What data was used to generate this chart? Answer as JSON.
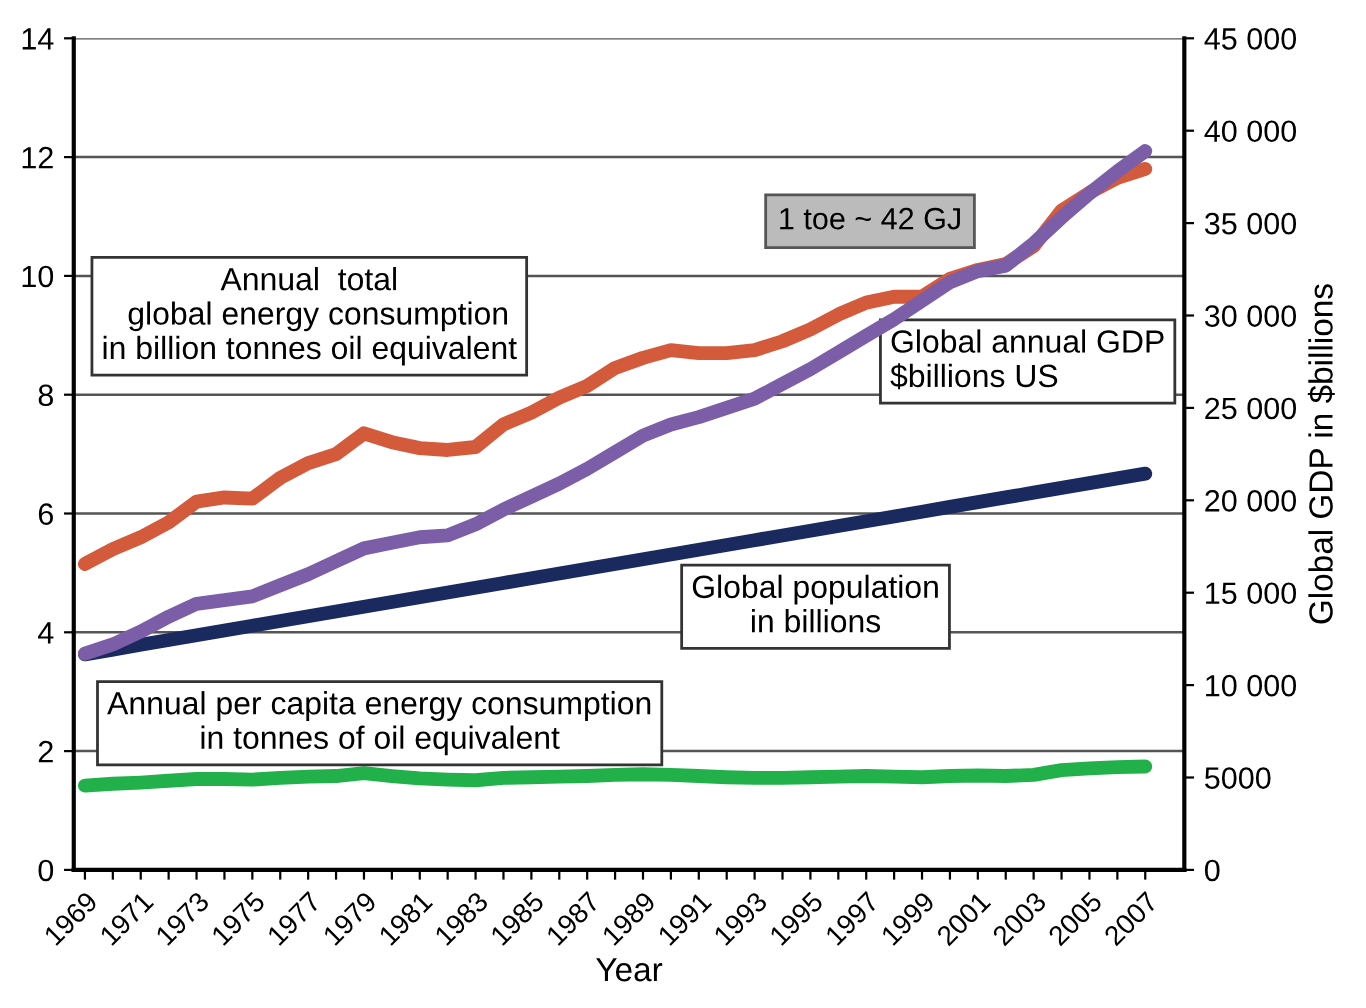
{
  "chart_data": {
    "type": "line",
    "xlabel": "Year",
    "y2label": "Global GDP in $billions",
    "x": [
      1969,
      1970,
      1971,
      1972,
      1973,
      1974,
      1975,
      1976,
      1977,
      1978,
      1979,
      1980,
      1981,
      1982,
      1983,
      1984,
      1985,
      1986,
      1987,
      1988,
      1989,
      1990,
      1991,
      1992,
      1993,
      1994,
      1995,
      1996,
      1997,
      1998,
      1999,
      2000,
      2001,
      2002,
      2003,
      2004,
      2005,
      2006,
      2007
    ],
    "xlim": [
      1968.6,
      2008.4
    ],
    "xticks": [
      1969,
      {
        "value": 1970,
        "label": null
      },
      1971,
      {
        "value": 1972,
        "label": null
      },
      1973,
      {
        "value": 1974,
        "label": null
      },
      1975,
      {
        "value": 1976,
        "label": null
      },
      1977,
      {
        "value": 1978,
        "label": null
      },
      1979,
      {
        "value": 1980,
        "label": null
      },
      1981,
      {
        "value": 1982,
        "label": null
      },
      1983,
      {
        "value": 1984,
        "label": null
      },
      1985,
      {
        "value": 1986,
        "label": null
      },
      1987,
      {
        "value": 1988,
        "label": null
      },
      1989,
      {
        "value": 1990,
        "label": null
      },
      1991,
      {
        "value": 1992,
        "label": null
      },
      1993,
      {
        "value": 1994,
        "label": null
      },
      1995,
      {
        "value": 1996,
        "label": null
      },
      1997,
      {
        "value": 1998,
        "label": null
      },
      1999,
      {
        "value": 2000,
        "label": null
      },
      2001,
      {
        "value": 2002,
        "label": null
      },
      2003,
      {
        "value": 2004,
        "label": null
      },
      2005,
      {
        "value": 2006,
        "label": null
      },
      2007
    ],
    "ylim": [
      0,
      14
    ],
    "yticks": [
      0,
      2,
      4,
      6,
      8,
      10,
      12,
      14
    ],
    "y2lim": [
      0,
      45000
    ],
    "y2ticks": [
      0,
      5000,
      {
        "value": 10000,
        "label": "10 000"
      },
      {
        "value": 15000,
        "label": "15 000"
      },
      {
        "value": 20000,
        "label": "20 000"
      },
      {
        "value": 25000,
        "label": "25 000"
      },
      {
        "value": 30000,
        "label": "30 000"
      },
      {
        "value": 35000,
        "label": "35 000"
      },
      {
        "value": 40000,
        "label": "40 000"
      },
      {
        "value": 45000,
        "label": "45 000"
      }
    ],
    "grid": "y",
    "legend": false,
    "marker": "none",
    "line_style": "solid",
    "annotations": [
      "1 toe ~ 42 GJ"
    ],
    "series": [
      {
        "name": "Annual  total\n  global energy consumption\nin billion tonnes oil equivalent",
        "color": "#d45a3c",
        "values": [
          5.15,
          5.4,
          5.6,
          5.85,
          6.2,
          6.27,
          6.25,
          6.6,
          6.85,
          7.0,
          7.35,
          7.2,
          7.1,
          7.07,
          7.12,
          7.5,
          7.7,
          7.95,
          8.15,
          8.45,
          8.62,
          8.75,
          8.7,
          8.7,
          8.75,
          8.9,
          9.1,
          9.35,
          9.55,
          9.65,
          9.65,
          9.95,
          10.1,
          10.2,
          10.5,
          11.1,
          11.4,
          11.65,
          11.8
        ]
      },
      {
        "name": "Global annual GDP\n$billions US",
        "color": "#7b5ea7",
        "axis": "y2",
        "values": [
          11700,
          12200,
          12900,
          13700,
          14400,
          14600,
          14800,
          15400,
          16000,
          16700,
          17400,
          17700,
          18000,
          18100,
          18700,
          19500,
          20200,
          20900,
          21700,
          22600,
          23500,
          24100,
          24500,
          25000,
          25500,
          26300,
          27100,
          28000,
          28900,
          29800,
          30800,
          31800,
          32400,
          32700,
          33900,
          35300,
          36600,
          37800,
          38900
        ]
      },
      {
        "name": "Global population\nin billions",
        "color": "#1b2a5e",
        "values": [
          3.63,
          3.71,
          3.79,
          3.87,
          3.95,
          4.03,
          4.11,
          4.19,
          4.27,
          4.35,
          4.43,
          4.51,
          4.59,
          4.67,
          4.75,
          4.83,
          4.91,
          4.99,
          5.07,
          5.15,
          5.23,
          5.31,
          5.39,
          5.47,
          5.55,
          5.63,
          5.71,
          5.79,
          5.87,
          5.95,
          6.03,
          6.11,
          6.19,
          6.27,
          6.35,
          6.43,
          6.51,
          6.59,
          6.67
        ]
      },
      {
        "name": "Annual per capita energy consumption\nin tonnes of oil equivalent",
        "color": "#22b04b",
        "values": [
          1.42,
          1.45,
          1.47,
          1.5,
          1.53,
          1.53,
          1.52,
          1.55,
          1.57,
          1.58,
          1.63,
          1.58,
          1.54,
          1.52,
          1.51,
          1.55,
          1.56,
          1.57,
          1.58,
          1.6,
          1.61,
          1.6,
          1.58,
          1.56,
          1.55,
          1.55,
          1.56,
          1.57,
          1.58,
          1.57,
          1.56,
          1.58,
          1.59,
          1.58,
          1.6,
          1.68,
          1.71,
          1.73,
          1.74
        ]
      }
    ]
  }
}
